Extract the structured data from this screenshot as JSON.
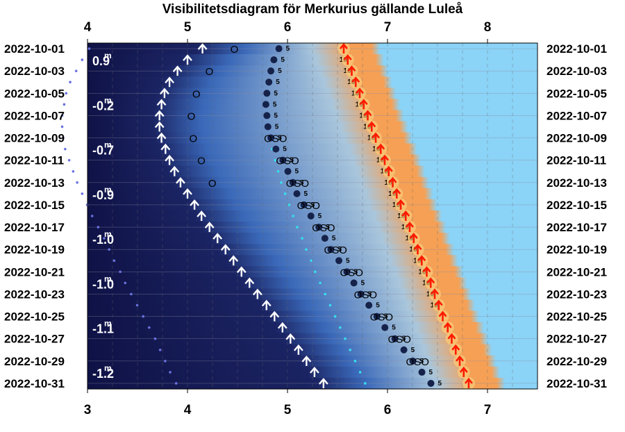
{
  "chart_data": {
    "type": "scatter",
    "title": "Visibilitetsdiagram för Merkurius gällande Luleå",
    "top_axis": {
      "ticks": [
        "4",
        "5",
        "6",
        "7",
        "8"
      ],
      "values": [
        4,
        5,
        6,
        7,
        8
      ]
    },
    "bottom_axis": {
      "ticks": [
        "3",
        "4",
        "5",
        "6",
        "7"
      ],
      "values": [
        3,
        4,
        5,
        6,
        7
      ]
    },
    "dates": [
      "2022-10-01",
      "2022-10-03",
      "2022-10-05",
      "2022-10-07",
      "2022-10-09",
      "2022-10-11",
      "2022-10-13",
      "2022-10-15",
      "2022-10-17",
      "2022-10-19",
      "2022-10-21",
      "2022-10-23",
      "2022-10-25",
      "2022-10-27",
      "2022-10-29",
      "2022-10-31"
    ],
    "magnitudes": [
      {
        "row": 0,
        "label": "0.9",
        "sup": "m"
      },
      {
        "row": 2,
        "label": "-0.2",
        "sup": "m"
      },
      {
        "row": 4,
        "label": "-0.7",
        "sup": "m"
      },
      {
        "row": 6,
        "label": "-0.9",
        "sup": "m"
      },
      {
        "row": 8,
        "label": "-1.0",
        "sup": "m"
      },
      {
        "row": 10,
        "label": "-1.0",
        "sup": "m"
      },
      {
        "row": 12,
        "label": "-1.1",
        "sup": "m"
      },
      {
        "row": 14,
        "label": "-1.2",
        "sup": "m"
      }
    ],
    "daily": {
      "sunrise": [
        6.84,
        6.88,
        6.92,
        6.96,
        7.0,
        7.04,
        7.08,
        7.12,
        7.16,
        7.21,
        7.25,
        7.29,
        7.33,
        7.37,
        7.41,
        7.46,
        7.5,
        7.54,
        7.58,
        7.62,
        7.67,
        7.71,
        7.75,
        7.79,
        7.83,
        7.88,
        7.92,
        7.96,
        8.0,
        8.04,
        8.09
      ],
      "marker": [
        5.15,
        5.0,
        4.9,
        4.82,
        4.77,
        4.74,
        4.72,
        4.72,
        4.74,
        4.78,
        4.82,
        4.87,
        4.93,
        5.0,
        5.07,
        5.14,
        5.22,
        5.3,
        5.38,
        5.46,
        5.54,
        5.62,
        5.7,
        5.79,
        5.87,
        5.95,
        6.03,
        6.11,
        6.19,
        6.27,
        6.36
      ],
      "merc": [
        6.4,
        6.35,
        6.32,
        6.3,
        6.28,
        6.27,
        6.28,
        6.29,
        6.32,
        6.37,
        6.44,
        6.49,
        6.54,
        6.58,
        6.65,
        6.72,
        6.8,
        6.86,
        6.92,
        7.0,
        7.08,
        7.15,
        7.22,
        7.3,
        7.38,
        7.46,
        7.56,
        7.65,
        7.74,
        7.83,
        7.92
      ],
      "dots_far": [
        4.85,
        4.78,
        4.72,
        4.66,
        4.62,
        4.6,
        4.58,
        4.58,
        4.59,
        4.61,
        4.65,
        4.69,
        4.73,
        4.78,
        4.83,
        4.88,
        4.94,
        5.0,
        5.05,
        5.1,
        5.16,
        5.21,
        5.27,
        5.33,
        5.39,
        5.45,
        5.51,
        5.56,
        5.61,
        5.66,
        5.72
      ],
      "dots_near": [
        6.75,
        6.72,
        6.69,
        6.67,
        6.65,
        6.64,
        6.64,
        6.65,
        6.66,
        6.68,
        6.71,
        6.74,
        6.77,
        6.81,
        6.85,
        6.89,
        6.93,
        6.98,
        7.02,
        7.07,
        7.11,
        7.16,
        7.21,
        7.26,
        7.31,
        7.36,
        7.41,
        7.46,
        7.51,
        7.56,
        7.61
      ]
    },
    "directions": [
      {
        "day": 1,
        "text": "O"
      },
      {
        "day": 3,
        "text": "O"
      },
      {
        "day": 5,
        "text": "O"
      },
      {
        "day": 7,
        "text": "O"
      },
      {
        "day": 9,
        "text": "O"
      },
      {
        "day": 11,
        "text": "O"
      },
      {
        "day": 13,
        "text": "O"
      },
      {
        "day": 9,
        "text": "OSO"
      },
      {
        "day": 11,
        "text": "OSO"
      },
      {
        "day": 13,
        "text": "OSO"
      },
      {
        "day": 15,
        "text": "OSO"
      },
      {
        "day": 17,
        "text": "OSO"
      },
      {
        "day": 19,
        "text": "OSO"
      },
      {
        "day": 21,
        "text": "OSO"
      },
      {
        "day": 23,
        "text": "OSO"
      },
      {
        "day": 25,
        "text": "OSO"
      },
      {
        "day": 27,
        "text": "OSO"
      },
      {
        "day": 29,
        "text": "OSO"
      }
    ],
    "alt_labels": [
      "5",
      "10"
    ],
    "colors": {
      "night": "#0f1246",
      "twilight": "#3a68b8",
      "day": "#8bd3f7",
      "dawn": "#f5a055",
      "sun_arrow": "#ff1a00",
      "merc_arrow": "#ffffff",
      "merc_dot": "#15224a"
    }
  }
}
